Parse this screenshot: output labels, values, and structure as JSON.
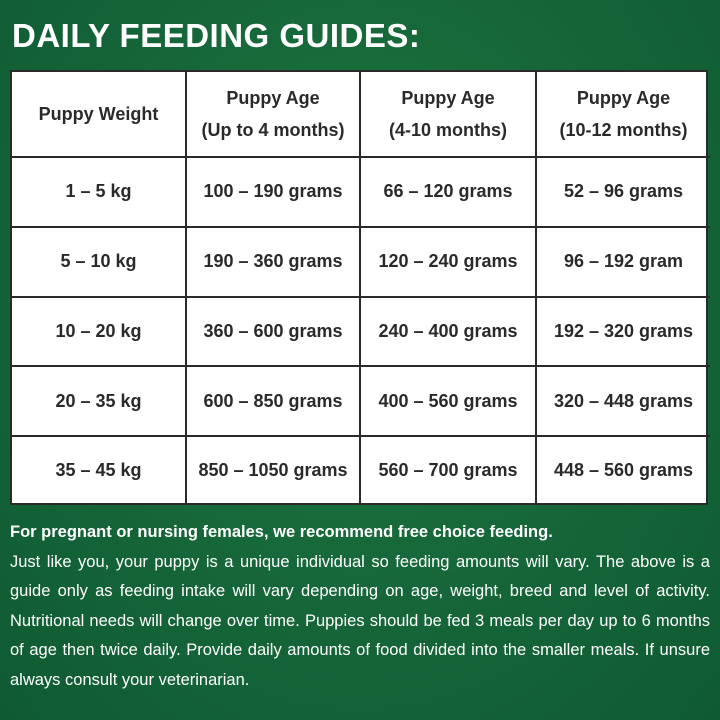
{
  "title": "DAILY FEEDING GUIDES:",
  "table": {
    "headers": [
      {
        "line1": "Puppy Weight",
        "line2": ""
      },
      {
        "line1": "Puppy Age",
        "line2": "(Up to 4 months)"
      },
      {
        "line1": "Puppy Age",
        "line2": "(4-10 months)"
      },
      {
        "line1": "Puppy Age",
        "line2": "(10-12 months)"
      }
    ],
    "rows": [
      [
        "1 – 5 kg",
        "100 – 190 grams",
        "66 – 120 grams",
        "52 – 96 grams"
      ],
      [
        "5 – 10 kg",
        "190 – 360 grams",
        "120 – 240 grams",
        "96 – 192 gram"
      ],
      [
        "10 – 20 kg",
        "360 – 600 grams",
        "240 – 400 grams",
        "192 – 320 grams"
      ],
      [
        "20 – 35 kg",
        "600 – 850 grams",
        "400 – 560 grams",
        "320 – 448 grams"
      ],
      [
        "35 – 45 kg",
        "850 – 1050 grams",
        "560 – 700 grams",
        "448 – 560 grams"
      ]
    ]
  },
  "notes": {
    "lead": "For pregnant or nursing females, we recommend free choice feeding.",
    "body": "Just like you, your puppy is a unique individual so feeding amounts will vary. The above is a guide only as feeding intake will vary depending on age, weight, breed and level of activity. Nutritional needs will change over time. Puppies should be fed 3 meals per day up to 6 months of age then twice daily. Provide daily amounts of food divided into the smaller meals. If unsure always consult your veterinarian."
  },
  "colors": {
    "background": "#17683a",
    "text_light": "#ffffff",
    "text_dark": "#2a2a2a"
  }
}
